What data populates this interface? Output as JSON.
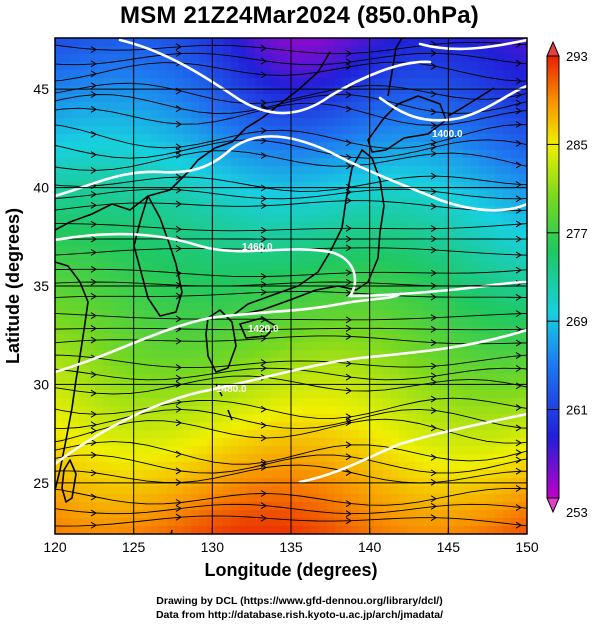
{
  "title": "MSM 21Z24Mar2024 (850.0hPa)",
  "map": {
    "lon_range": [
      120,
      150
    ],
    "lat_range": [
      22.4,
      47.6
    ],
    "x_ticks": [
      "120",
      "125",
      "130",
      "135",
      "140",
      "145",
      "150"
    ],
    "y_ticks": [
      "25",
      "30",
      "35",
      "40",
      "45"
    ],
    "xlabel": "Longitude (degrees)",
    "ylabel": "Latitude (degrees)"
  },
  "colorbar": {
    "min": 253,
    "max": 293,
    "labels": [
      "293",
      "285",
      "277",
      "269",
      "261",
      "253"
    ]
  },
  "contour_labels": [
    "1400.0",
    "1460.0",
    "1480.0",
    "1420.0"
  ],
  "footer": {
    "line1": "Drawing by DCL (https://www.gfd-dennou.org/library/dcl/)",
    "line2": "Data from http://database.rish.kyoto-u.ac.jp/arch/jmadata/"
  }
}
